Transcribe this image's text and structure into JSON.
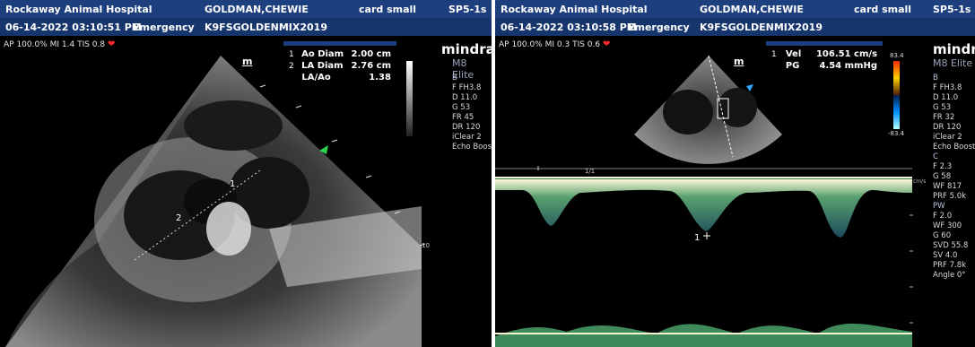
{
  "left": {
    "header": {
      "clinic": "Rockaway Animal Hospital",
      "patient": "GOLDMAN,CHEWIE",
      "preset": "card small",
      "probe": "SP5-1s",
      "datetime": "06-14-2022 03:10:51 PM",
      "exam": "Emergency",
      "patient_id": "K9FSGOLDENMIX2019"
    },
    "status": "AP 100.0%  MI 1.4  TIS 0.8",
    "measurements": [
      {
        "idx": "1",
        "label": "Ao Diam",
        "value": "2.00 cm"
      },
      {
        "idx": "2",
        "label": "LA Diam",
        "value": "2.76 cm"
      },
      {
        "idx": "",
        "label": "LA/Ao",
        "value": "1.38"
      }
    ],
    "orientation_mark": "m",
    "brand": "mindray",
    "model": "M8 Elite",
    "params": [
      "B",
      "F FH3.8",
      "D 11.0",
      "G 53",
      "FR 45",
      "DR 120",
      "iClear 2",
      "Echo Boost"
    ],
    "depth_label": "10",
    "markers": [
      "1",
      "2"
    ]
  },
  "right": {
    "header": {
      "clinic": "Rockaway Animal Hospital",
      "patient": "GOLDMAN,CHEWIE",
      "preset": "card small",
      "probe": "SP5-1s",
      "datetime": "06-14-2022 03:10:58 PM",
      "exam": "Emergency",
      "patient_id": "K9FSGOLDENMIX2019"
    },
    "status": "AP 100.0%  MI 0.3  TIS 0.6",
    "measurements": [
      {
        "idx": "1",
        "label": "Vel",
        "value": "106.51 cm/s"
      },
      {
        "idx": "",
        "label": "PG",
        "value": "4.54 mmHg"
      }
    ],
    "orientation_mark": "m",
    "brand": "mindray",
    "model": "M8 Elite",
    "colorbar_top": "83.4",
    "colorbar_bottom": "-83.4",
    "scale_unit": "cm/s",
    "params": [
      {
        "t": "sec",
        "v": "B"
      },
      {
        "v": "F FH3.8"
      },
      {
        "v": "D 11.0"
      },
      {
        "v": "G 53"
      },
      {
        "v": "FR 32"
      },
      {
        "v": "DR 120"
      },
      {
        "v": "iClear 2"
      },
      {
        "v": "Echo Boost"
      },
      {
        "t": "sec",
        "v": "C"
      },
      {
        "v": "F 2.3"
      },
      {
        "v": "G 58"
      },
      {
        "v": "WF 817"
      },
      {
        "v": "PRF 5.0k"
      },
      {
        "t": "sec",
        "v": "PW"
      },
      {
        "v": "F 2.0"
      },
      {
        "v": "WF 300"
      },
      {
        "v": "G 60"
      },
      {
        "v": "SVD 55.8"
      },
      {
        "v": "SV 4.0"
      },
      {
        "v": "PRF 7.8k"
      },
      {
        "v": "Angle 0°"
      }
    ],
    "timescale": "1/1",
    "marker": "1"
  },
  "colors": {
    "header": "#1d3f7e",
    "header2": "#17356d",
    "accent_green": "#2bd14a",
    "accent_cyan": "#2fa8ff"
  }
}
